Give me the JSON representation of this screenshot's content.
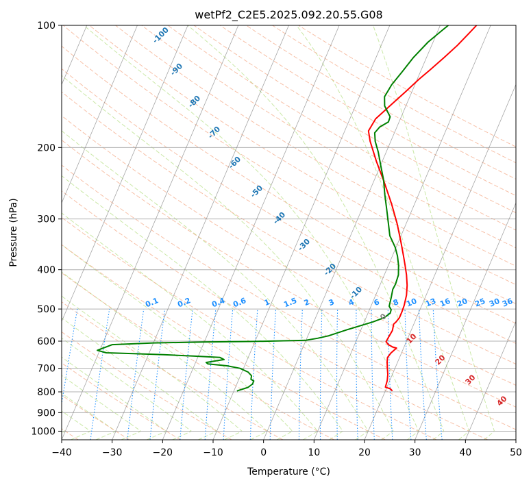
{
  "chart_data": {
    "type": "line",
    "title": "wetPf2_C2E5.2025.092.20.55.G08",
    "xlabel": "Temperature (°C)",
    "ylabel": "Pressure (hPa)",
    "xlim": [
      -40,
      50
    ],
    "ylim": [
      1050,
      100
    ],
    "y_scale": "log",
    "x_ticks": [
      -40,
      -30,
      -20,
      -10,
      0,
      10,
      20,
      30,
      40,
      50
    ],
    "y_ticks": [
      1000,
      900,
      800,
      700,
      600,
      500,
      400,
      300,
      200,
      100
    ],
    "grid": true,
    "series": [
      {
        "color": "#ff0000",
        "points": [
          [
            21.4,
            796
          ],
          [
            20.8,
            786
          ],
          [
            19.7,
            779
          ],
          [
            19.5,
            750
          ],
          [
            19.1,
            725
          ],
          [
            18.5,
            700
          ],
          [
            17.9,
            675
          ],
          [
            17.6,
            658
          ],
          [
            17.9,
            642
          ],
          [
            18.6,
            624
          ],
          [
            17.7,
            620
          ],
          [
            16.7,
            612
          ],
          [
            16.0,
            602
          ],
          [
            16.1,
            587
          ],
          [
            16.3,
            565
          ],
          [
            16.1,
            551
          ],
          [
            16.0,
            545
          ],
          [
            16.3,
            538
          ],
          [
            16.6,
            525
          ],
          [
            16.6,
            507
          ],
          [
            16.5,
            489
          ],
          [
            16.1,
            462
          ],
          [
            15.4,
            437
          ],
          [
            14.4,
            412
          ],
          [
            13.3,
            390
          ],
          [
            12.2,
            370
          ],
          [
            10.4,
            340
          ],
          [
            8.2,
            308
          ],
          [
            5.4,
            275
          ],
          [
            2.1,
            243
          ],
          [
            -1.2,
            216
          ],
          [
            -4.1,
            193
          ],
          [
            -5.3,
            182
          ],
          [
            -4.9,
            170
          ],
          [
            -3.2,
            158
          ],
          [
            -1.3,
            146
          ],
          [
            0.3,
            136
          ],
          [
            1.7,
            129
          ],
          [
            3.5,
            120
          ],
          [
            5.1,
            112
          ],
          [
            6.3,
            105
          ],
          [
            7.2,
            100
          ]
        ]
      },
      {
        "color": "#008000",
        "points": [
          [
            -9.4,
            796
          ],
          [
            -7.5,
            780
          ],
          [
            -6.9,
            765
          ],
          [
            -6.9,
            752
          ],
          [
            -7.6,
            745
          ],
          [
            -7.8,
            730
          ],
          [
            -8.8,
            715
          ],
          [
            -10.7,
            700
          ],
          [
            -13.5,
            690
          ],
          [
            -17.4,
            683
          ],
          [
            -17.9,
            677
          ],
          [
            -15.8,
            670
          ],
          [
            -14.6,
            666
          ],
          [
            -15.6,
            658
          ],
          [
            -21.0,
            653
          ],
          [
            -27.0,
            648
          ],
          [
            -33.0,
            644
          ],
          [
            -38.5,
            641
          ],
          [
            -40.5,
            632
          ],
          [
            -38.0,
            612
          ],
          [
            -30.0,
            606
          ],
          [
            -20.0,
            603
          ],
          [
            -10.0,
            601
          ],
          [
            0.0,
            597
          ],
          [
            2.2,
            590
          ],
          [
            4.1,
            582
          ],
          [
            7.3,
            562
          ],
          [
            9.5,
            550
          ],
          [
            11.7,
            538
          ],
          [
            13.6,
            525
          ],
          [
            14.4,
            512
          ],
          [
            14.3,
            502
          ],
          [
            13.6,
            492
          ],
          [
            13.3,
            470
          ],
          [
            12.9,
            447
          ],
          [
            13.0,
            434
          ],
          [
            12.8,
            412
          ],
          [
            12.0,
            390
          ],
          [
            11.0,
            370
          ],
          [
            9.8,
            352
          ],
          [
            7.8,
            330
          ],
          [
            6.3,
            305
          ],
          [
            5.0,
            285
          ],
          [
            3.3,
            261
          ],
          [
            1.8,
            240
          ],
          [
            0.1,
            222
          ],
          [
            -1.6,
            205
          ],
          [
            -3.1,
            193
          ],
          [
            -3.9,
            184
          ],
          [
            -3.4,
            178
          ],
          [
            -2.1,
            173
          ],
          [
            -2.2,
            168
          ],
          [
            -4.2,
            158
          ],
          [
            -5.0,
            150
          ],
          [
            -4.6,
            140
          ],
          [
            -3.6,
            130
          ],
          [
            -2.6,
            120
          ],
          [
            -1.0,
            110
          ],
          [
            0.5,
            104
          ],
          [
            1.6,
            100
          ]
        ]
      }
    ],
    "dry_adiabats_labels": [
      "-100",
      "-90",
      "-80",
      "-70",
      "-60",
      "-50",
      "-40",
      "-30",
      "-20",
      "-10",
      "0",
      "10",
      "20",
      "30",
      "40"
    ],
    "moist_adiabat_label": "0",
    "mixing_ratio_labels": [
      "0.1",
      "0.2",
      "0.4",
      "0.6",
      "1",
      "1.5",
      "2",
      "3",
      "4",
      "6",
      "8",
      "10",
      "13",
      "16",
      "20",
      "25",
      "30",
      "36"
    ],
    "colors": {
      "dry_adiabat": "#f4a582",
      "moist_adiabat": "#a6d96a",
      "mixing_ratio": "#1e90ff",
      "theta_label": "#1f77b4",
      "theta_label_warm": "#d62728",
      "isotherm": "#808080",
      "grid": "#b0b0b0"
    }
  }
}
